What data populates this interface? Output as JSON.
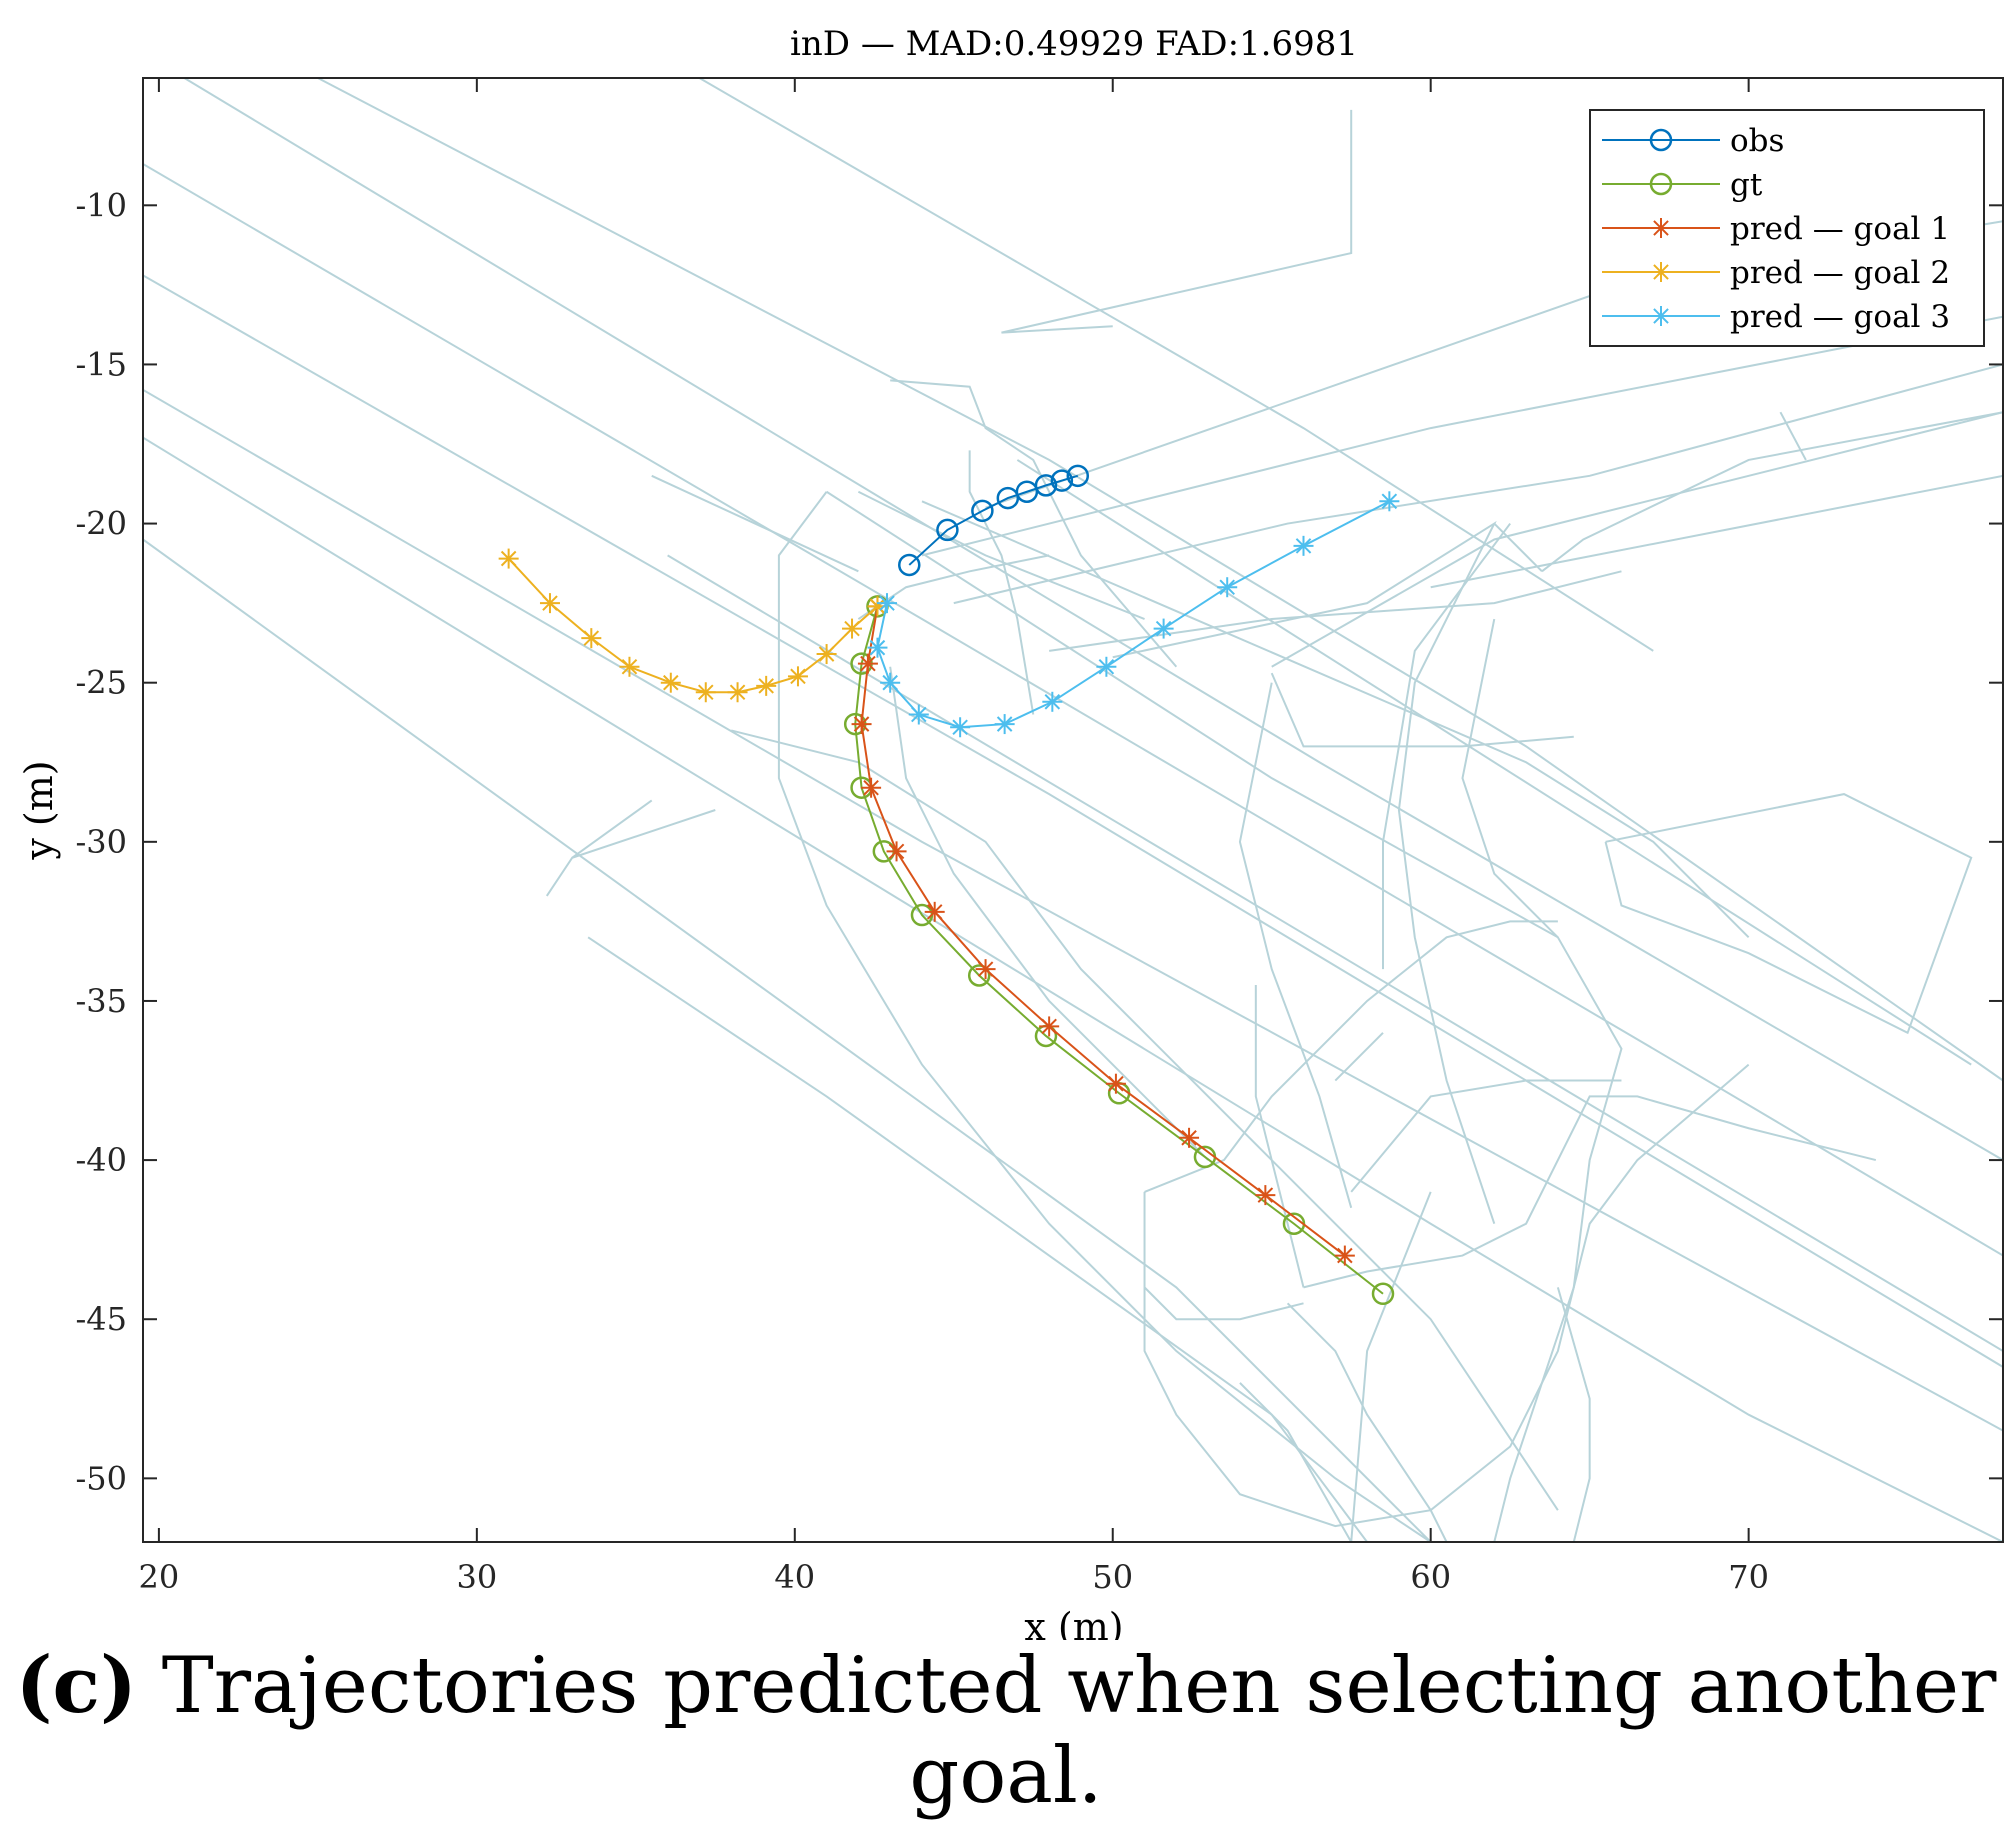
{
  "caption": {
    "label": "(c)",
    "text": "Trajectories predicted when selecting another goal."
  },
  "chart_data": {
    "type": "line",
    "title": "inD — MAD:0.49929 FAD:1.6981",
    "xlabel": "x (m)",
    "ylabel": "y (m)",
    "xlim": [
      19.5,
      78
    ],
    "ylim": [
      -52,
      -6
    ],
    "xticks": [
      20,
      30,
      40,
      50,
      60,
      70
    ],
    "yticks": [
      -10,
      -15,
      -20,
      -25,
      -30,
      -35,
      -40,
      -45,
      -50
    ],
    "grid": false,
    "legend_position": "top-right",
    "map_color": "#b7d3d9",
    "map_lines": [
      [
        [
          20.8,
          -6
        ],
        [
          56.5,
          -27.5
        ],
        [
          78,
          -40
        ]
      ],
      [
        [
          19.5,
          -8.7
        ],
        [
          44,
          -23
        ],
        [
          67,
          -36.5
        ],
        [
          78,
          -43
        ]
      ],
      [
        [
          19.5,
          -12.2
        ],
        [
          48,
          -28.5
        ],
        [
          78,
          -46.5
        ]
      ],
      [
        [
          19.5,
          -15.8
        ],
        [
          44,
          -30
        ],
        [
          78,
          -48.5
        ]
      ],
      [
        [
          19.5,
          -17.3
        ],
        [
          60,
          -42
        ],
        [
          70,
          -48
        ],
        [
          78,
          -52
        ]
      ],
      [
        [
          19.5,
          -20.5
        ],
        [
          52,
          -44
        ],
        [
          60,
          -52
        ]
      ],
      [
        [
          33.5,
          -33
        ],
        [
          41,
          -38
        ],
        [
          55,
          -48
        ],
        [
          58,
          -52
        ]
      ],
      [
        [
          25,
          -6
        ],
        [
          48,
          -18
        ],
        [
          63,
          -27
        ],
        [
          78,
          -37.5
        ]
      ],
      [
        [
          37,
          -6
        ],
        [
          56,
          -17
        ],
        [
          67,
          -24
        ]
      ],
      [
        [
          47,
          -18
        ],
        [
          77,
          -37
        ]
      ],
      [
        [
          36,
          -21
        ],
        [
          52,
          -30.5
        ],
        [
          78,
          -46
        ]
      ],
      [
        [
          41,
          -19
        ],
        [
          55,
          -28
        ],
        [
          64,
          -33
        ]
      ],
      [
        [
          57.5,
          -7
        ],
        [
          57.5,
          -11.5
        ],
        [
          46.5,
          -14
        ],
        [
          50,
          -13.8
        ]
      ],
      [
        [
          43,
          -15.5
        ],
        [
          45.5,
          -15.7
        ],
        [
          46,
          -17
        ],
        [
          47.5,
          -18
        ],
        [
          49,
          -21
        ],
        [
          52,
          -24.5
        ]
      ],
      [
        [
          45.5,
          -17.7
        ],
        [
          45.5,
          -19
        ],
        [
          46.5,
          -21
        ],
        [
          47,
          -23
        ],
        [
          47.5,
          -26
        ]
      ],
      [
        [
          44,
          -19.3
        ],
        [
          63,
          -27.5
        ],
        [
          67,
          -30
        ],
        [
          70,
          -33
        ]
      ],
      [
        [
          35.5,
          -18.5
        ],
        [
          42,
          -21.5
        ]
      ],
      [
        [
          42,
          -19
        ],
        [
          46,
          -21
        ],
        [
          51,
          -23
        ]
      ],
      [
        [
          41,
          -19
        ],
        [
          39.5,
          -21
        ],
        [
          39.5,
          -24
        ],
        [
          39.5,
          -28
        ],
        [
          41,
          -32
        ],
        [
          44,
          -37
        ],
        [
          48,
          -42
        ],
        [
          52,
          -46
        ],
        [
          57,
          -50
        ],
        [
          60,
          -52
        ]
      ],
      [
        [
          38,
          -26.5
        ],
        [
          42,
          -27.5
        ],
        [
          46,
          -30
        ],
        [
          49,
          -34
        ],
        [
          53,
          -38
        ],
        [
          56,
          -41
        ],
        [
          60,
          -45
        ],
        [
          62,
          -48
        ],
        [
          64,
          -51
        ]
      ],
      [
        [
          42,
          -23
        ],
        [
          43.5,
          -22
        ],
        [
          45.5,
          -21.5
        ],
        [
          48,
          -21
        ]
      ],
      [
        [
          43,
          -24.5
        ],
        [
          43.5,
          -28
        ],
        [
          45,
          -31
        ],
        [
          48,
          -35
        ],
        [
          53,
          -40
        ]
      ],
      [
        [
          45,
          -22.5
        ],
        [
          55.5,
          -20
        ],
        [
          65,
          -18.5
        ],
        [
          78,
          -15
        ]
      ],
      [
        [
          44,
          -21
        ],
        [
          60,
          -17
        ],
        [
          78,
          -13.5
        ]
      ],
      [
        [
          46,
          -19.5
        ],
        [
          66,
          -12.5
        ],
        [
          78,
          -10.5
        ]
      ],
      [
        [
          60,
          -22
        ],
        [
          78,
          -18.5
        ]
      ],
      [
        [
          48,
          -24
        ],
        [
          55,
          -23
        ],
        [
          62,
          -22.5
        ],
        [
          66,
          -21.5
        ]
      ],
      [
        [
          55,
          -24.5
        ],
        [
          62,
          -20.5
        ],
        [
          78,
          -16.5
        ]
      ],
      [
        [
          63.5,
          -21.5
        ],
        [
          64.8,
          -20.5
        ],
        [
          70,
          -18
        ],
        [
          78,
          -16.5
        ]
      ],
      [
        [
          71,
          -16.5
        ],
        [
          71.8,
          -18
        ]
      ],
      [
        [
          62,
          -20
        ],
        [
          63.5,
          -21.5
        ]
      ],
      [
        [
          55,
          -24.7
        ],
        [
          56,
          -27
        ],
        [
          61,
          -27
        ],
        [
          64.5,
          -26.7
        ]
      ],
      [
        [
          50,
          -24.2
        ],
        [
          58,
          -22.5
        ],
        [
          62,
          -20
        ],
        [
          59.5,
          -25
        ],
        [
          59,
          -29
        ],
        [
          59.5,
          -33
        ],
        [
          60.5,
          -37.5
        ],
        [
          62,
          -42
        ]
      ],
      [
        [
          62.5,
          -20
        ],
        [
          59.5,
          -24
        ],
        [
          58.5,
          -30
        ],
        [
          58.5,
          -34
        ]
      ],
      [
        [
          55,
          -25
        ],
        [
          54,
          -30
        ],
        [
          55,
          -34
        ],
        [
          56.5,
          -38
        ],
        [
          57.5,
          -41.5
        ]
      ],
      [
        [
          65.5,
          -30
        ],
        [
          73,
          -28.5
        ],
        [
          77,
          -30.5
        ],
        [
          75,
          -36
        ],
        [
          70,
          -33.5
        ],
        [
          66,
          -32
        ],
        [
          65.5,
          -30
        ]
      ],
      [
        [
          62,
          -23
        ],
        [
          61,
          -28
        ],
        [
          62,
          -31
        ],
        [
          64,
          -33
        ],
        [
          66,
          -36.5
        ],
        [
          65,
          -40
        ],
        [
          64.5,
          -44
        ],
        [
          63.5,
          -47
        ],
        [
          62.5,
          -50
        ],
        [
          62,
          -52
        ]
      ],
      [
        [
          51,
          -41
        ],
        [
          53.5,
          -40
        ],
        [
          55,
          -38
        ],
        [
          58,
          -35
        ],
        [
          60.5,
          -33
        ],
        [
          62.5,
          -32.5
        ],
        [
          64,
          -32.5
        ]
      ],
      [
        [
          51,
          -44
        ],
        [
          52,
          -45
        ],
        [
          54,
          -45
        ],
        [
          56,
          -44.5
        ]
      ],
      [
        [
          56,
          -44
        ],
        [
          58,
          -43.5
        ],
        [
          61,
          -43
        ],
        [
          63,
          -42
        ],
        [
          65,
          -38
        ],
        [
          66.5,
          -38
        ],
        [
          70,
          -39
        ],
        [
          74,
          -40
        ]
      ],
      [
        [
          55.5,
          -44.5
        ],
        [
          57,
          -46
        ],
        [
          58,
          -48
        ],
        [
          60,
          -51
        ],
        [
          60.5,
          -52
        ]
      ],
      [
        [
          57.5,
          -41
        ],
        [
          60,
          -38
        ],
        [
          63,
          -37.5
        ],
        [
          66,
          -37.5
        ]
      ],
      [
        [
          56,
          -44
        ],
        [
          54.5,
          -38
        ],
        [
          54.5,
          -34.5
        ]
      ],
      [
        [
          51,
          -41
        ],
        [
          51,
          -46
        ],
        [
          52,
          -48
        ],
        [
          54,
          -50.5
        ],
        [
          57,
          -51.5
        ],
        [
          60,
          -51
        ],
        [
          62.5,
          -49
        ],
        [
          64,
          -46
        ],
        [
          65,
          -42
        ],
        [
          66.5,
          -40
        ],
        [
          70,
          -37
        ]
      ],
      [
        [
          54,
          -47
        ],
        [
          55.5,
          -48.5
        ],
        [
          57.5,
          -52
        ]
      ],
      [
        [
          64,
          -44
        ],
        [
          65,
          -47.5
        ],
        [
          65,
          -50
        ],
        [
          64.5,
          -52
        ]
      ],
      [
        [
          60,
          -41
        ],
        [
          58,
          -46
        ],
        [
          57.5,
          -52
        ]
      ],
      [
        [
          32.2,
          -31.7
        ],
        [
          33,
          -30.5
        ],
        [
          36,
          -29.5
        ],
        [
          37.5,
          -29
        ]
      ],
      [
        [
          33,
          -30.5
        ],
        [
          35.5,
          -28.7
        ]
      ],
      [
        [
          58.5,
          -36
        ],
        [
          57,
          -37.5
        ]
      ]
    ],
    "series": [
      {
        "name": "obs",
        "color": "#0072bd",
        "marker": "circle",
        "x": [
          43.6,
          44.8,
          45.9,
          46.7,
          47.3,
          47.9,
          48.4,
          48.9
        ],
        "y": [
          -21.3,
          -20.2,
          -19.6,
          -19.2,
          -19.0,
          -18.8,
          -18.65,
          -18.5
        ]
      },
      {
        "name": "gt",
        "color": "#77ac30",
        "marker": "circle",
        "x": [
          42.6,
          42.1,
          41.9,
          42.1,
          42.8,
          44.0,
          45.8,
          47.9,
          50.2,
          52.9,
          55.7,
          58.5
        ],
        "y": [
          -22.6,
          -24.4,
          -26.3,
          -28.3,
          -30.3,
          -32.3,
          -34.2,
          -36.1,
          -37.9,
          -39.9,
          -42.0,
          -44.2
        ]
      },
      {
        "name": "pred — goal 1",
        "color": "#d95319",
        "marker": "asterisk",
        "x": [
          42.6,
          42.3,
          42.1,
          42.4,
          43.2,
          44.4,
          46.0,
          48.0,
          50.1,
          52.4,
          54.8,
          57.3
        ],
        "y": [
          -22.6,
          -24.4,
          -26.3,
          -28.3,
          -30.3,
          -32.2,
          -34.0,
          -35.8,
          -37.6,
          -39.3,
          -41.1,
          -43.0
        ]
      },
      {
        "name": "pred — goal 2",
        "color": "#edb120",
        "marker": "asterisk",
        "x": [
          42.6,
          41.8,
          41.0,
          40.1,
          39.1,
          38.2,
          37.2,
          36.1,
          34.8,
          33.6,
          32.3,
          31.0
        ],
        "y": [
          -22.6,
          -23.3,
          -24.1,
          -24.8,
          -25.1,
          -25.3,
          -25.3,
          -25.0,
          -24.5,
          -23.6,
          -22.5,
          -21.1
        ]
      },
      {
        "name": "pred — goal 3",
        "color": "#4dbeee",
        "marker": "asterisk",
        "x": [
          42.9,
          42.6,
          43.0,
          43.9,
          45.2,
          46.6,
          48.1,
          49.8,
          51.6,
          53.6,
          56.0,
          58.7
        ],
        "y": [
          -22.5,
          -23.9,
          -25.0,
          -26.0,
          -26.4,
          -26.3,
          -25.6,
          -24.5,
          -23.3,
          -22.0,
          -20.7,
          -19.3
        ]
      }
    ]
  }
}
